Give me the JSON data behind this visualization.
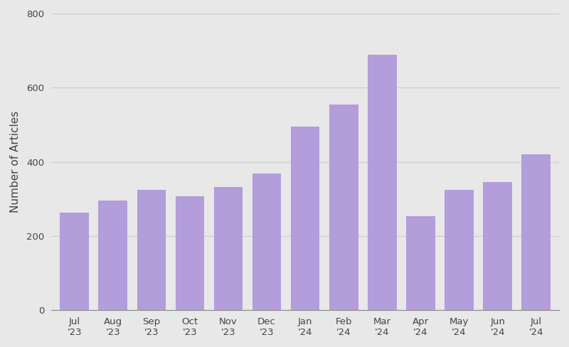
{
  "categories": [
    "Jul\n'23",
    "Aug\n'23",
    "Sep\n'23",
    "Oct\n'23",
    "Nov\n'23",
    "Dec\n'23",
    "Jan\n'24",
    "Feb\n'24",
    "Mar\n'24",
    "Apr\n'24",
    "May\n'24",
    "Jun\n'24",
    "Jul\n'24"
  ],
  "values": [
    263,
    295,
    325,
    308,
    332,
    368,
    495,
    555,
    688,
    253,
    325,
    345,
    420
  ],
  "bar_color": "#b39ddb",
  "ylabel": "Number of Articles",
  "ylim": [
    0,
    800
  ],
  "yticks": [
    0,
    200,
    400,
    600,
    800
  ],
  "background_color": "#e8e8e8",
  "grid_color": "#d0d0d0",
  "bar_width": 0.75,
  "ylabel_fontsize": 11,
  "tick_fontsize": 9.5,
  "tick_color": "#444444"
}
